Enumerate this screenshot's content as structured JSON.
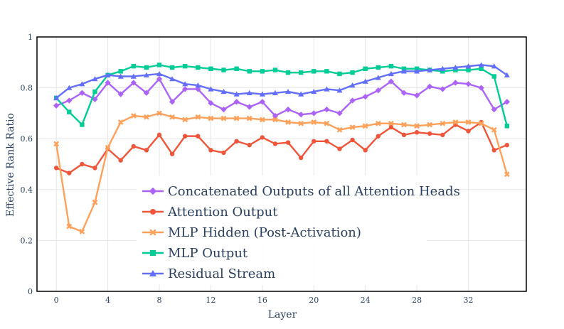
{
  "chart_data": {
    "type": "line",
    "title": "",
    "xlabel": "Layer",
    "ylabel": "Effective Rank Ratio",
    "xlim": [
      -1.5,
      36.5
    ],
    "ylim": [
      0,
      1
    ],
    "x_ticks": [
      0,
      4,
      8,
      12,
      16,
      20,
      24,
      28,
      32
    ],
    "x_tick_labels": [
      "0",
      "4",
      "8",
      "12",
      "16",
      "20",
      "24",
      "28",
      "32"
    ],
    "y_ticks": [
      0,
      0.2,
      0.4,
      0.6,
      0.8,
      1
    ],
    "y_tick_labels": [
      "0",
      "0.2",
      "0.4",
      "0.6",
      "0.8",
      "1"
    ],
    "grid": true,
    "legend_position": "bottom-center",
    "x": [
      0,
      1,
      2,
      3,
      4,
      5,
      6,
      7,
      8,
      9,
      10,
      11,
      12,
      13,
      14,
      15,
      16,
      17,
      18,
      19,
      20,
      21,
      22,
      23,
      24,
      25,
      26,
      27,
      28,
      29,
      30,
      31,
      32,
      33,
      34,
      35
    ],
    "series": [
      {
        "name": "Concatenated Outputs of all Attention Heads",
        "color": "#ab63fa",
        "marker": "diamond",
        "values": [
          0.73,
          0.75,
          0.78,
          0.755,
          0.82,
          0.775,
          0.82,
          0.78,
          0.835,
          0.745,
          0.795,
          0.795,
          0.74,
          0.715,
          0.745,
          0.725,
          0.745,
          0.69,
          0.715,
          0.695,
          0.7,
          0.715,
          0.7,
          0.75,
          0.765,
          0.79,
          0.825,
          0.78,
          0.77,
          0.805,
          0.795,
          0.82,
          0.815,
          0.8,
          0.715,
          0.745
        ]
      },
      {
        "name": "Attention Output",
        "color": "#ef553b",
        "marker": "circle",
        "values": [
          0.485,
          0.465,
          0.5,
          0.485,
          0.56,
          0.515,
          0.57,
          0.555,
          0.615,
          0.54,
          0.61,
          0.61,
          0.555,
          0.545,
          0.59,
          0.575,
          0.605,
          0.58,
          0.585,
          0.525,
          0.59,
          0.59,
          0.56,
          0.595,
          0.555,
          0.61,
          0.645,
          0.615,
          0.625,
          0.62,
          0.615,
          0.655,
          0.63,
          0.665,
          0.555,
          0.575
        ]
      },
      {
        "name": "MLP Hidden (Post-Activation)",
        "color": "#ffa15a",
        "marker": "x",
        "values": [
          0.58,
          0.255,
          0.235,
          0.35,
          0.565,
          0.665,
          0.69,
          0.685,
          0.7,
          0.685,
          0.675,
          0.685,
          0.68,
          0.68,
          0.68,
          0.68,
          0.675,
          0.675,
          0.665,
          0.66,
          0.665,
          0.66,
          0.635,
          0.645,
          0.65,
          0.66,
          0.66,
          0.655,
          0.65,
          0.655,
          0.66,
          0.665,
          0.665,
          0.66,
          0.635,
          0.46
        ]
      },
      {
        "name": "MLP Output",
        "color": "#00cc96",
        "marker": "square",
        "values": [
          0.76,
          0.705,
          0.655,
          0.785,
          0.85,
          0.865,
          0.885,
          0.88,
          0.89,
          0.88,
          0.885,
          0.88,
          0.875,
          0.87,
          0.875,
          0.865,
          0.865,
          0.87,
          0.86,
          0.86,
          0.865,
          0.865,
          0.855,
          0.86,
          0.875,
          0.88,
          0.885,
          0.875,
          0.875,
          0.87,
          0.865,
          0.87,
          0.87,
          0.875,
          0.845,
          0.65
        ]
      },
      {
        "name": "Residual Stream",
        "color": "#636efa",
        "marker": "triangle-up",
        "values": [
          0.76,
          0.8,
          0.815,
          0.835,
          0.85,
          0.845,
          0.845,
          0.85,
          0.855,
          0.835,
          0.815,
          0.81,
          0.795,
          0.785,
          0.775,
          0.78,
          0.775,
          0.78,
          0.785,
          0.775,
          0.785,
          0.795,
          0.79,
          0.81,
          0.825,
          0.84,
          0.855,
          0.865,
          0.865,
          0.87,
          0.875,
          0.88,
          0.885,
          0.89,
          0.885,
          0.85
        ]
      }
    ]
  }
}
